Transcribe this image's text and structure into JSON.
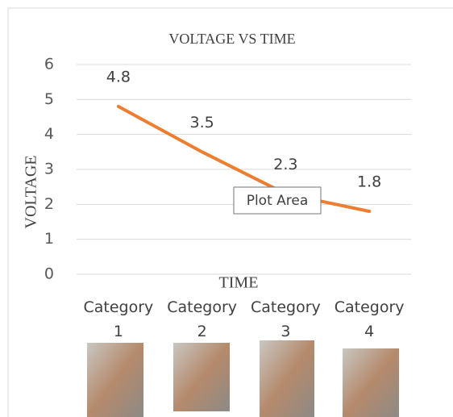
{
  "chart_data": {
    "type": "line",
    "title": "VOLTAGE VS TIME",
    "x_label": "TIME",
    "y_label": "VOLTAGE",
    "categories": [
      "Category 1",
      "Category 2",
      "Category 3",
      "Category 4"
    ],
    "values": [
      4.8,
      3.5,
      2.3,
      1.8
    ],
    "color": "#ed7d31",
    "ylim": [
      0,
      6
    ],
    "yticks": [
      0,
      1,
      2,
      3,
      4,
      5,
      6
    ],
    "grid": true,
    "tooltip": "Plot Area"
  }
}
